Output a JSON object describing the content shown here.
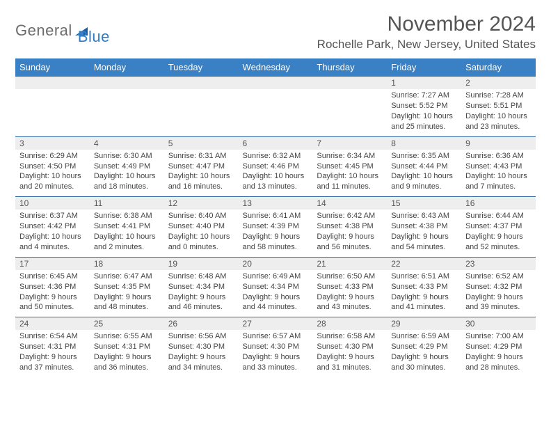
{
  "logo": {
    "word1": "General",
    "word2": "Blue"
  },
  "title": "November 2024",
  "location": "Rochelle Park, New Jersey, United States",
  "colors": {
    "header_bg": "#3a80c4",
    "header_text": "#ffffff",
    "rule": "#2f6aa8",
    "daynum_bg": "#eeeeee",
    "body_text": "#444444",
    "logo_gray": "#6b6b6b",
    "logo_blue": "#2f7bc4"
  },
  "weekdays": [
    "Sunday",
    "Monday",
    "Tuesday",
    "Wednesday",
    "Thursday",
    "Friday",
    "Saturday"
  ],
  "weeks": [
    [
      null,
      null,
      null,
      null,
      null,
      {
        "n": "1",
        "sr": "Sunrise: 7:27 AM",
        "ss": "Sunset: 5:52 PM",
        "dl1": "Daylight: 10 hours",
        "dl2": "and 25 minutes."
      },
      {
        "n": "2",
        "sr": "Sunrise: 7:28 AM",
        "ss": "Sunset: 5:51 PM",
        "dl1": "Daylight: 10 hours",
        "dl2": "and 23 minutes."
      }
    ],
    [
      {
        "n": "3",
        "sr": "Sunrise: 6:29 AM",
        "ss": "Sunset: 4:50 PM",
        "dl1": "Daylight: 10 hours",
        "dl2": "and 20 minutes."
      },
      {
        "n": "4",
        "sr": "Sunrise: 6:30 AM",
        "ss": "Sunset: 4:49 PM",
        "dl1": "Daylight: 10 hours",
        "dl2": "and 18 minutes."
      },
      {
        "n": "5",
        "sr": "Sunrise: 6:31 AM",
        "ss": "Sunset: 4:47 PM",
        "dl1": "Daylight: 10 hours",
        "dl2": "and 16 minutes."
      },
      {
        "n": "6",
        "sr": "Sunrise: 6:32 AM",
        "ss": "Sunset: 4:46 PM",
        "dl1": "Daylight: 10 hours",
        "dl2": "and 13 minutes."
      },
      {
        "n": "7",
        "sr": "Sunrise: 6:34 AM",
        "ss": "Sunset: 4:45 PM",
        "dl1": "Daylight: 10 hours",
        "dl2": "and 11 minutes."
      },
      {
        "n": "8",
        "sr": "Sunrise: 6:35 AM",
        "ss": "Sunset: 4:44 PM",
        "dl1": "Daylight: 10 hours",
        "dl2": "and 9 minutes."
      },
      {
        "n": "9",
        "sr": "Sunrise: 6:36 AM",
        "ss": "Sunset: 4:43 PM",
        "dl1": "Daylight: 10 hours",
        "dl2": "and 7 minutes."
      }
    ],
    [
      {
        "n": "10",
        "sr": "Sunrise: 6:37 AM",
        "ss": "Sunset: 4:42 PM",
        "dl1": "Daylight: 10 hours",
        "dl2": "and 4 minutes."
      },
      {
        "n": "11",
        "sr": "Sunrise: 6:38 AM",
        "ss": "Sunset: 4:41 PM",
        "dl1": "Daylight: 10 hours",
        "dl2": "and 2 minutes."
      },
      {
        "n": "12",
        "sr": "Sunrise: 6:40 AM",
        "ss": "Sunset: 4:40 PM",
        "dl1": "Daylight: 10 hours",
        "dl2": "and 0 minutes."
      },
      {
        "n": "13",
        "sr": "Sunrise: 6:41 AM",
        "ss": "Sunset: 4:39 PM",
        "dl1": "Daylight: 9 hours",
        "dl2": "and 58 minutes."
      },
      {
        "n": "14",
        "sr": "Sunrise: 6:42 AM",
        "ss": "Sunset: 4:38 PM",
        "dl1": "Daylight: 9 hours",
        "dl2": "and 56 minutes."
      },
      {
        "n": "15",
        "sr": "Sunrise: 6:43 AM",
        "ss": "Sunset: 4:38 PM",
        "dl1": "Daylight: 9 hours",
        "dl2": "and 54 minutes."
      },
      {
        "n": "16",
        "sr": "Sunrise: 6:44 AM",
        "ss": "Sunset: 4:37 PM",
        "dl1": "Daylight: 9 hours",
        "dl2": "and 52 minutes."
      }
    ],
    [
      {
        "n": "17",
        "sr": "Sunrise: 6:45 AM",
        "ss": "Sunset: 4:36 PM",
        "dl1": "Daylight: 9 hours",
        "dl2": "and 50 minutes."
      },
      {
        "n": "18",
        "sr": "Sunrise: 6:47 AM",
        "ss": "Sunset: 4:35 PM",
        "dl1": "Daylight: 9 hours",
        "dl2": "and 48 minutes."
      },
      {
        "n": "19",
        "sr": "Sunrise: 6:48 AM",
        "ss": "Sunset: 4:34 PM",
        "dl1": "Daylight: 9 hours",
        "dl2": "and 46 minutes."
      },
      {
        "n": "20",
        "sr": "Sunrise: 6:49 AM",
        "ss": "Sunset: 4:34 PM",
        "dl1": "Daylight: 9 hours",
        "dl2": "and 44 minutes."
      },
      {
        "n": "21",
        "sr": "Sunrise: 6:50 AM",
        "ss": "Sunset: 4:33 PM",
        "dl1": "Daylight: 9 hours",
        "dl2": "and 43 minutes."
      },
      {
        "n": "22",
        "sr": "Sunrise: 6:51 AM",
        "ss": "Sunset: 4:33 PM",
        "dl1": "Daylight: 9 hours",
        "dl2": "and 41 minutes."
      },
      {
        "n": "23",
        "sr": "Sunrise: 6:52 AM",
        "ss": "Sunset: 4:32 PM",
        "dl1": "Daylight: 9 hours",
        "dl2": "and 39 minutes."
      }
    ],
    [
      {
        "n": "24",
        "sr": "Sunrise: 6:54 AM",
        "ss": "Sunset: 4:31 PM",
        "dl1": "Daylight: 9 hours",
        "dl2": "and 37 minutes."
      },
      {
        "n": "25",
        "sr": "Sunrise: 6:55 AM",
        "ss": "Sunset: 4:31 PM",
        "dl1": "Daylight: 9 hours",
        "dl2": "and 36 minutes."
      },
      {
        "n": "26",
        "sr": "Sunrise: 6:56 AM",
        "ss": "Sunset: 4:30 PM",
        "dl1": "Daylight: 9 hours",
        "dl2": "and 34 minutes."
      },
      {
        "n": "27",
        "sr": "Sunrise: 6:57 AM",
        "ss": "Sunset: 4:30 PM",
        "dl1": "Daylight: 9 hours",
        "dl2": "and 33 minutes."
      },
      {
        "n": "28",
        "sr": "Sunrise: 6:58 AM",
        "ss": "Sunset: 4:30 PM",
        "dl1": "Daylight: 9 hours",
        "dl2": "and 31 minutes."
      },
      {
        "n": "29",
        "sr": "Sunrise: 6:59 AM",
        "ss": "Sunset: 4:29 PM",
        "dl1": "Daylight: 9 hours",
        "dl2": "and 30 minutes."
      },
      {
        "n": "30",
        "sr": "Sunrise: 7:00 AM",
        "ss": "Sunset: 4:29 PM",
        "dl1": "Daylight: 9 hours",
        "dl2": "and 28 minutes."
      }
    ]
  ]
}
